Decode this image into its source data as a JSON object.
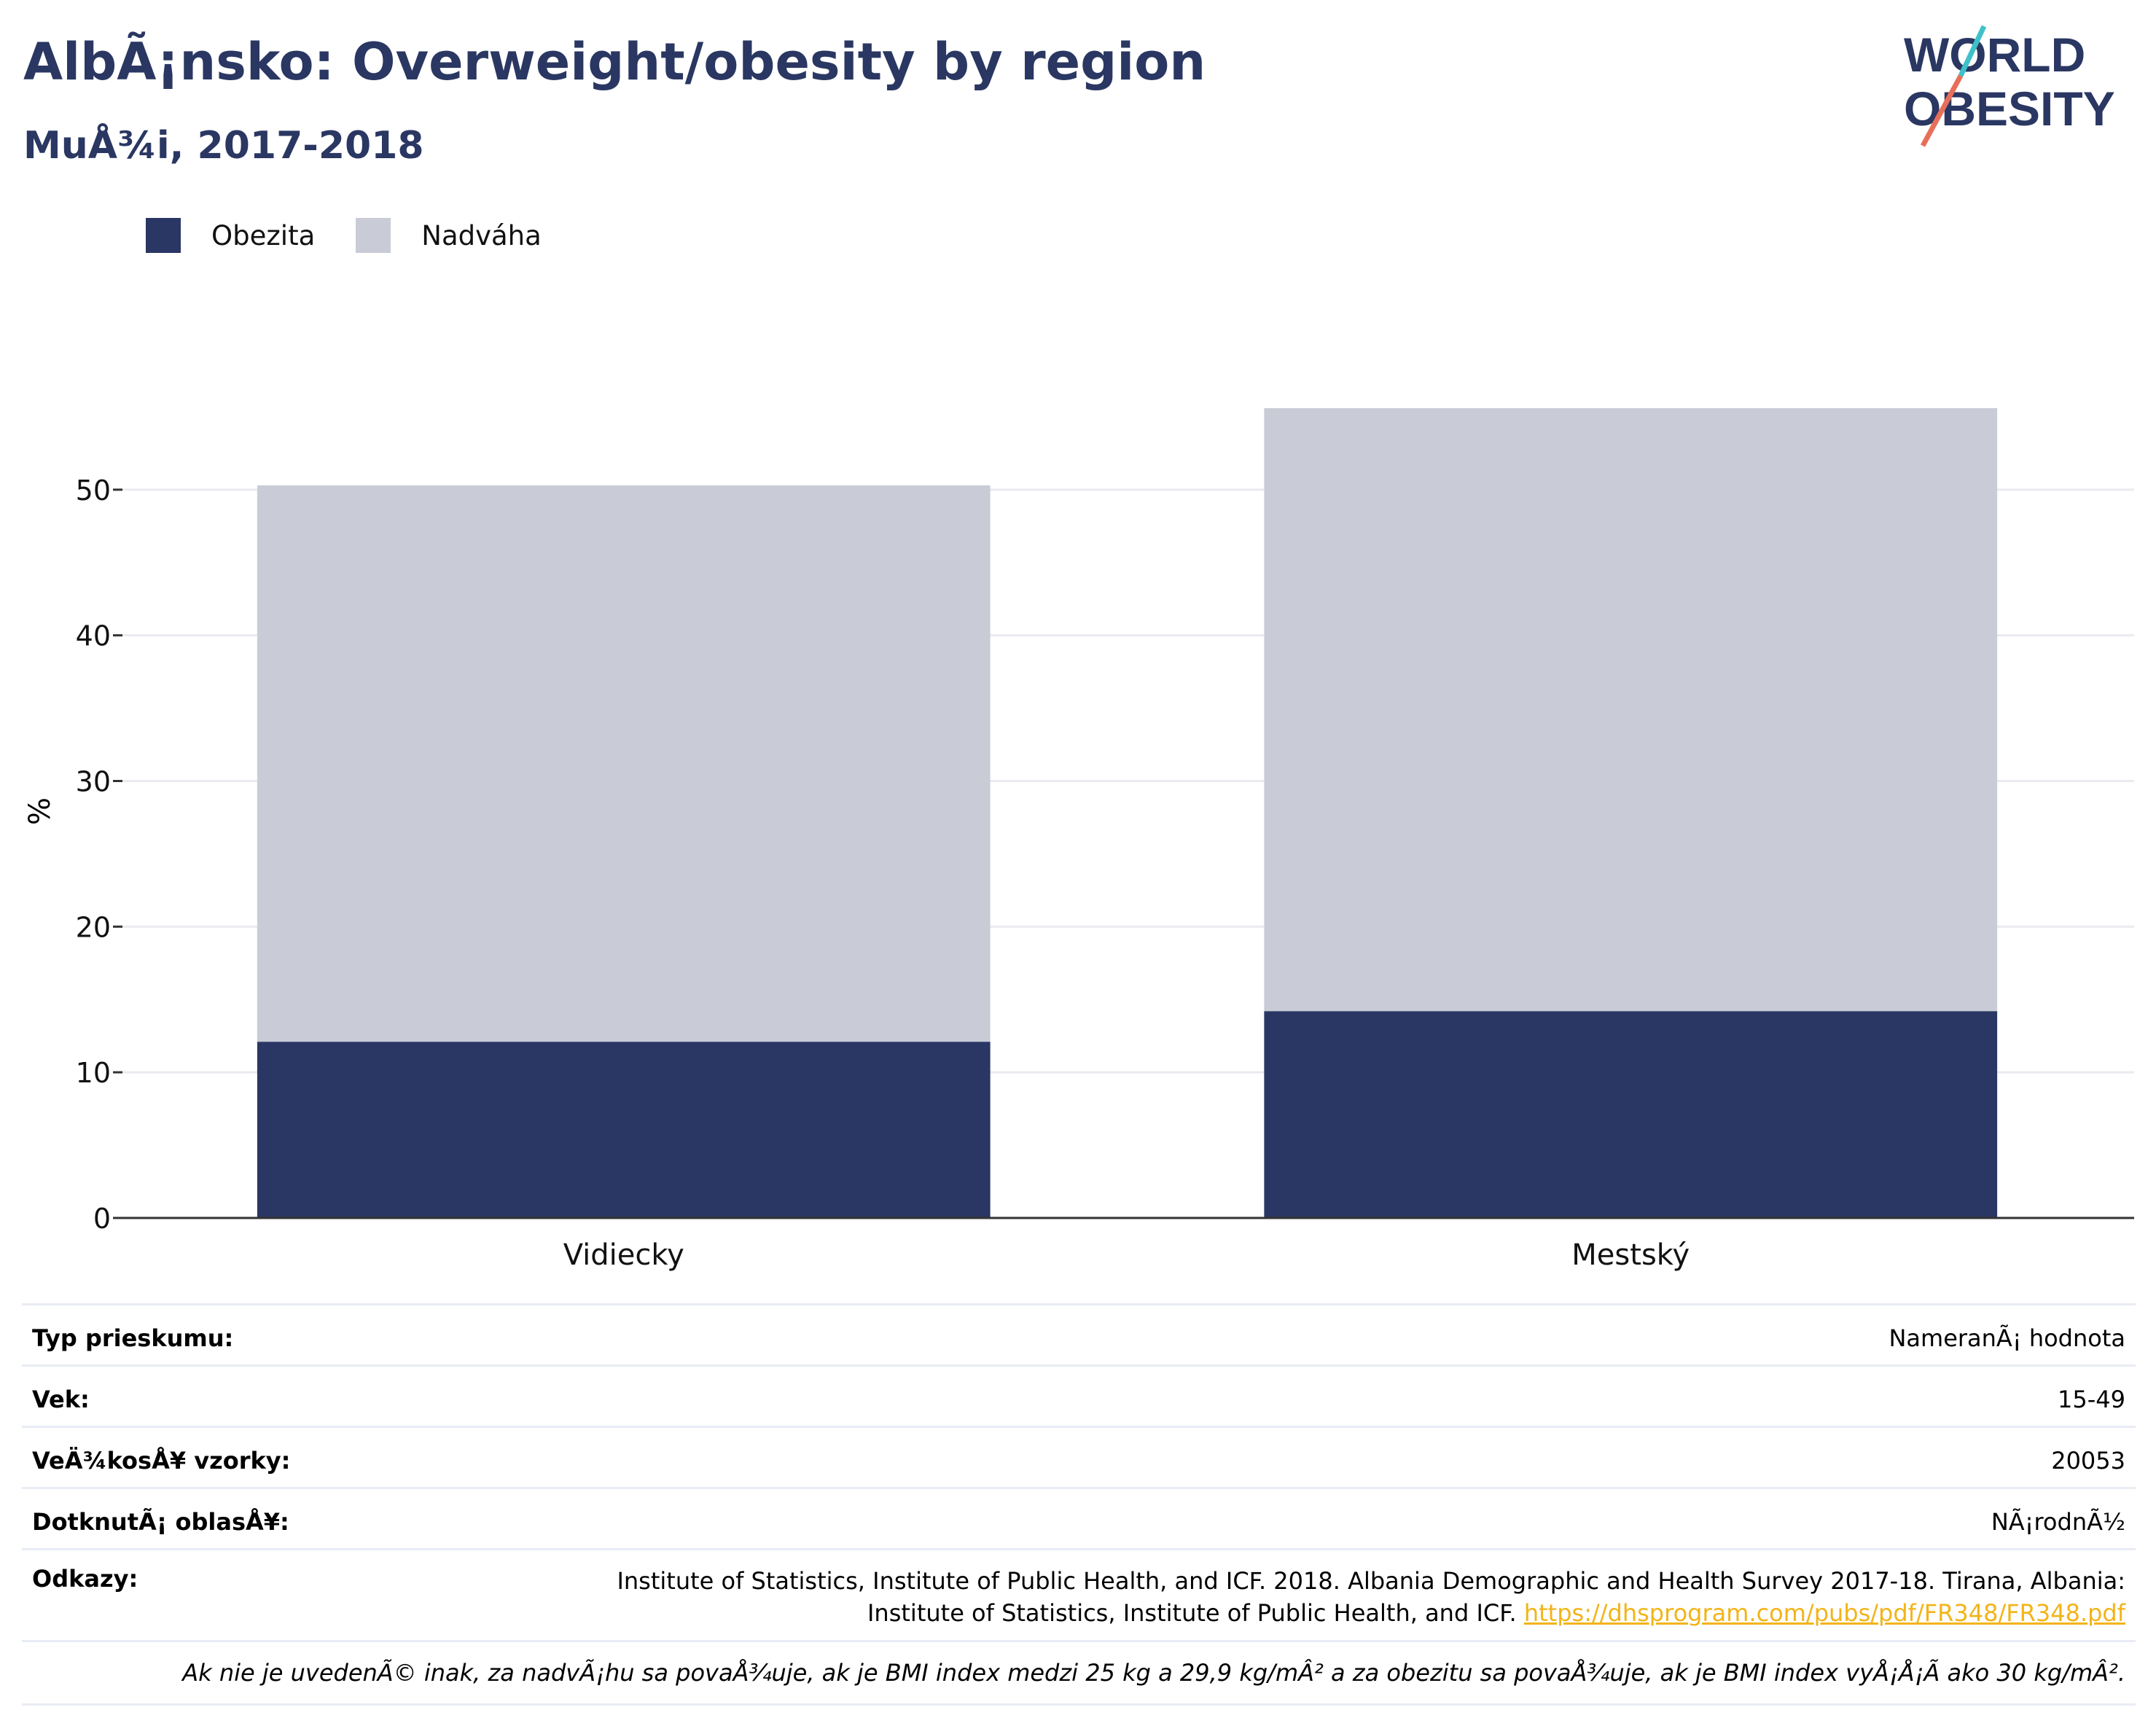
{
  "header": {
    "title": "AlbÃ¡nsko: Overweight/obesity by region",
    "subtitle": "MuÅ¾i, 2017-2018"
  },
  "logo": {
    "line1": "WORLD",
    "line2": "OBESITY"
  },
  "colors": {
    "obesity": "#2a3764",
    "overweight": "#c9ccd7",
    "title": "#2a3762",
    "link": "#f2b418"
  },
  "chart_data": {
    "type": "bar",
    "stacked": true,
    "categories": [
      "Vidiecky",
      "Mestský"
    ],
    "series": [
      {
        "name": "Obezita",
        "values": [
          12.1,
          14.2
        ],
        "color": "#2a3764"
      },
      {
        "name": "Nadváha",
        "values": [
          38.2,
          41.4
        ],
        "color": "#c9ccd7"
      }
    ],
    "ylabel": "%",
    "ylim": [
      0,
      60
    ],
    "yticks": [
      0,
      10,
      20,
      30,
      40,
      50
    ],
    "grid": true,
    "legend_position": "top-left"
  },
  "info": {
    "survey_type_label": "Typ prieskumu:",
    "survey_type_value": "NameranÃ¡ hodnota",
    "age_label": "Vek:",
    "age_value": "15-49",
    "sample_label": "VeÄ¾kosÅ¥ vzorky:",
    "sample_value": "20053",
    "area_label": "DotknutÃ¡ oblasÅ¥:",
    "area_value": "NÃ¡rodnÃ½",
    "refs_label": "Odkazy:",
    "refs_line1": "Institute of Statistics, Institute of Public Health, and ICF. 2018. Albania Demographic and Health Survey 2017-18. Tirana, Albania:",
    "refs_line2": "Institute of Statistics, Institute of Public Health, and ICF.",
    "refs_link": "https://dhsprogram.com/pubs/pdf/FR348/FR348.pdf",
    "note": "Ak nie je uvedenÃ© inak, za nadvÃ¡hu sa povaÅ¾uje, ak je BMI index medzi 25 kg a 29,9 kg/mÂ² a za obezitu sa povaÅ¾uje, ak je BMI index vyÅ¡Å¡Ã ako 30 kg/mÂ²."
  }
}
